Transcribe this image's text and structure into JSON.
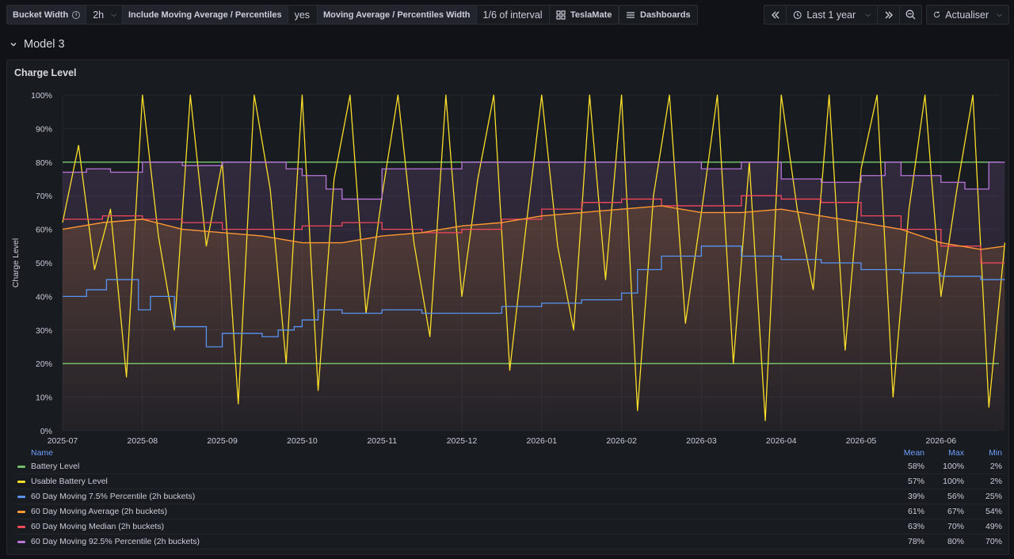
{
  "toolbar": {
    "variables": [
      {
        "label": "Bucket Width",
        "value": "2h",
        "has_info": true
      },
      {
        "label": "Include Moving Average / Percentiles",
        "value": "yes"
      },
      {
        "label": "Moving Average / Percentiles Width",
        "value": "1/6 of interval"
      }
    ],
    "links": [
      {
        "label": "TeslaMate",
        "icon": "apps-grid-icon"
      },
      {
        "label": "Dashboards",
        "icon": "menu-bars-icon"
      }
    ],
    "time_range": "Last 1 year",
    "refresh_label": "Actualiser"
  },
  "row": {
    "title": "Model 3"
  },
  "panel": {
    "title": "Charge Level"
  },
  "chart_data": {
    "type": "line",
    "ylabel": "Charge Level",
    "ylim": [
      0,
      100
    ],
    "y_ticks": [
      "0%",
      "10%",
      "20%",
      "30%",
      "40%",
      "50%",
      "60%",
      "70%",
      "80%",
      "90%",
      "100%"
    ],
    "x_ticks": [
      "2025-07",
      "2025-08",
      "2025-09",
      "2025-10",
      "2025-11",
      "2025-12",
      "2026-01",
      "2026-02",
      "2026-03",
      "2026-04",
      "2026-05",
      "2026-06"
    ],
    "x_months_start": "2025-07",
    "series": [
      {
        "name": "Battery Level",
        "color": "#73bf69",
        "style": "threshold",
        "levels": [
          80,
          20
        ]
      },
      {
        "name": "Usable Battery Level",
        "color": "#fade2a",
        "style": "spiky",
        "x": [
          0.0,
          0.2,
          0.4,
          0.6,
          0.8,
          1.0,
          1.2,
          1.4,
          1.6,
          1.8,
          2.0,
          2.2,
          2.4,
          2.6,
          2.8,
          3.0,
          3.2,
          3.4,
          3.6,
          3.8,
          4.0,
          4.2,
          4.4,
          4.6,
          4.8,
          5.0,
          5.2,
          5.4,
          5.6,
          5.8,
          6.0,
          6.2,
          6.4,
          6.6,
          6.8,
          7.0,
          7.2,
          7.4,
          7.6,
          7.8,
          8.0,
          8.2,
          8.4,
          8.6,
          8.8,
          9.0,
          9.2,
          9.4,
          9.6,
          9.8,
          10.0,
          10.2,
          10.4,
          10.6,
          10.8,
          11.0,
          11.2,
          11.4,
          11.6,
          11.8
        ],
        "values": [
          62,
          85,
          48,
          66,
          16,
          100,
          58,
          30,
          100,
          55,
          80,
          8,
          100,
          72,
          20,
          100,
          12,
          75,
          100,
          35,
          70,
          100,
          56,
          28,
          100,
          40,
          75,
          100,
          18,
          60,
          100,
          55,
          30,
          100,
          45,
          100,
          6,
          70,
          100,
          32,
          65,
          100,
          20,
          80,
          3,
          100,
          66,
          42,
          100,
          24,
          78,
          100,
          10,
          66,
          100,
          40,
          72,
          100,
          7,
          56
        ]
      },
      {
        "name": "60 Day Moving 7.5% Percentile (2h buckets)",
        "color": "#5794f2",
        "style": "step",
        "x": [
          0.0,
          0.3,
          0.55,
          0.95,
          1.1,
          1.4,
          1.8,
          2.0,
          2.5,
          2.7,
          2.9,
          3.0,
          3.2,
          3.5,
          4.0,
          4.5,
          5.0,
          5.5,
          6.0,
          6.5,
          7.0,
          7.2,
          7.5,
          8.0,
          8.5,
          9.0,
          9.5,
          10.0,
          10.5,
          11.0,
          11.5,
          11.8
        ],
        "values": [
          40,
          42,
          45,
          36,
          40,
          31,
          25,
          29,
          28,
          30,
          31,
          33,
          36,
          35,
          36,
          35,
          35,
          37,
          38,
          39,
          41,
          48,
          52,
          55,
          52,
          51,
          50,
          48,
          47,
          46,
          45,
          45
        ]
      },
      {
        "name": "60 Day Moving Average (2h buckets)",
        "color": "#ff9830",
        "style": "smooth",
        "x": [
          0.0,
          0.5,
          1.0,
          1.5,
          2.0,
          2.5,
          3.0,
          3.5,
          4.0,
          4.5,
          5.0,
          5.5,
          6.0,
          6.5,
          7.0,
          7.5,
          8.0,
          8.5,
          9.0,
          9.5,
          10.0,
          10.5,
          11.0,
          11.5,
          11.8
        ],
        "values": [
          60,
          62,
          63,
          60,
          59,
          58,
          56,
          56,
          58,
          59,
          61,
          62,
          64,
          65,
          66,
          67,
          65,
          65,
          66,
          64,
          62,
          60,
          56,
          54,
          55
        ]
      },
      {
        "name": "60 Day Moving Median (2h buckets)",
        "color": "#f2495c",
        "style": "step",
        "x": [
          0.0,
          0.5,
          1.0,
          1.5,
          2.0,
          2.5,
          3.0,
          3.5,
          4.0,
          4.5,
          5.0,
          5.5,
          6.0,
          6.5,
          7.0,
          7.5,
          8.0,
          8.5,
          9.0,
          9.5,
          10.0,
          10.5,
          11.0,
          11.5,
          11.8
        ],
        "values": [
          63,
          64,
          63,
          62,
          60,
          60,
          61,
          62,
          60,
          59,
          60,
          63,
          66,
          68,
          69,
          67,
          67,
          70,
          69,
          68,
          64,
          60,
          55,
          50,
          50
        ]
      },
      {
        "name": "60 Day Moving 92.5% Percentile (2h buckets)",
        "color": "#b877d9",
        "style": "step",
        "x": [
          0.0,
          0.3,
          0.6,
          1.0,
          1.5,
          2.0,
          2.5,
          2.8,
          3.0,
          3.3,
          3.5,
          4.0,
          5.0,
          6.0,
          7.0,
          7.5,
          8.0,
          8.5,
          9.0,
          9.5,
          10.0,
          10.3,
          10.5,
          11.0,
          11.3,
          11.6,
          11.8
        ],
        "values": [
          77,
          78,
          77,
          80,
          79,
          80,
          80,
          78,
          76,
          72,
          69,
          78,
          80,
          80,
          80,
          80,
          78,
          80,
          75,
          74,
          76,
          80,
          76,
          74,
          72,
          80,
          80
        ]
      }
    ]
  },
  "legend": {
    "headers": {
      "name": "Name",
      "mean": "Mean",
      "max": "Max",
      "min": "Min"
    },
    "rows": [
      {
        "name": "Battery Level",
        "color": "#73bf69",
        "mean": "58%",
        "max": "100%",
        "min": "2%"
      },
      {
        "name": "Usable Battery Level",
        "color": "#fade2a",
        "mean": "57%",
        "max": "100%",
        "min": "2%"
      },
      {
        "name": "60 Day Moving 7.5% Percentile (2h buckets)",
        "color": "#5794f2",
        "mean": "39%",
        "max": "56%",
        "min": "25%"
      },
      {
        "name": "60 Day Moving Average (2h buckets)",
        "color": "#ff9830",
        "mean": "61%",
        "max": "67%",
        "min": "54%"
      },
      {
        "name": "60 Day Moving Median (2h buckets)",
        "color": "#f2495c",
        "mean": "63%",
        "max": "70%",
        "min": "49%"
      },
      {
        "name": "60 Day Moving 92.5% Percentile (2h buckets)",
        "color": "#b877d9",
        "mean": "78%",
        "max": "80%",
        "min": "70%"
      }
    ]
  }
}
